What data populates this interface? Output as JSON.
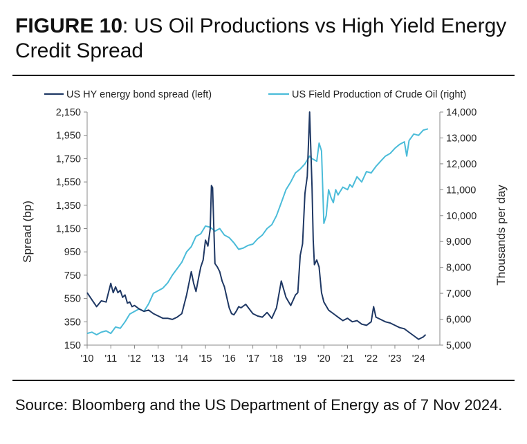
{
  "header": {
    "figure_label": "FIGURE 10",
    "title_text": ": US Oil Productions vs High Yield Energy Credit Spread"
  },
  "footer": {
    "source": "Source: Bloomberg and the US Department of Energy as of 7 Nov 2024."
  },
  "chart_data": {
    "type": "line",
    "title": "",
    "legend_position": "top",
    "grid": false,
    "x_range": [
      2010.0,
      2024.9
    ],
    "x_ticks": [
      {
        "x": 2010,
        "label": "'10"
      },
      {
        "x": 2011,
        "label": "'11"
      },
      {
        "x": 2012,
        "label": "'12"
      },
      {
        "x": 2013,
        "label": "'13"
      },
      {
        "x": 2014,
        "label": "'14"
      },
      {
        "x": 2015,
        "label": "'15"
      },
      {
        "x": 2016,
        "label": "'16"
      },
      {
        "x": 2017,
        "label": "'17"
      },
      {
        "x": 2018,
        "label": "'18"
      },
      {
        "x": 2019,
        "label": "'19"
      },
      {
        "x": 2020,
        "label": "'20"
      },
      {
        "x": 2021,
        "label": "'21"
      },
      {
        "x": 2022,
        "label": "'22"
      },
      {
        "x": 2023,
        "label": "'23"
      },
      {
        "x": 2024,
        "label": "'24"
      }
    ],
    "y_left": {
      "label": "Spread (bp)",
      "range": [
        150,
        2150
      ],
      "ticks": [
        "2,150",
        "1,950",
        "1,750",
        "1,550",
        "1,350",
        "1,150",
        "950",
        "750",
        "550",
        "350",
        "150"
      ],
      "tick_values": [
        2150,
        1950,
        1750,
        1550,
        1350,
        1150,
        950,
        750,
        550,
        350,
        150
      ]
    },
    "y_right": {
      "label": "Thousands per day",
      "range": [
        5000,
        14000
      ],
      "ticks": [
        "14,000",
        "13,000",
        "12,000",
        "11,000",
        "10,000",
        "9,000",
        "8,000",
        "7,000",
        "6,000",
        "5,000"
      ],
      "tick_values": [
        14000,
        13000,
        12000,
        11000,
        10000,
        9000,
        8000,
        7000,
        6000,
        5000
      ]
    },
    "series": [
      {
        "name": "US HY energy bond spread (left)",
        "axis": "left",
        "color": "#1f3864",
        "x": [
          2010.0,
          2010.2,
          2010.4,
          2010.6,
          2010.8,
          2011.0,
          2011.1,
          2011.2,
          2011.3,
          2011.4,
          2011.5,
          2011.6,
          2011.7,
          2011.8,
          2011.9,
          2012.0,
          2012.2,
          2012.4,
          2012.6,
          2012.8,
          2013.0,
          2013.2,
          2013.4,
          2013.6,
          2013.8,
          2014.0,
          2014.2,
          2014.4,
          2014.5,
          2014.6,
          2014.7,
          2014.8,
          2014.9,
          2015.0,
          2015.1,
          2015.2,
          2015.25,
          2015.3,
          2015.4,
          2015.5,
          2015.6,
          2015.7,
          2015.8,
          2015.9,
          2016.0,
          2016.1,
          2016.2,
          2016.3,
          2016.4,
          2016.5,
          2016.7,
          2017.0,
          2017.2,
          2017.4,
          2017.6,
          2017.8,
          2018.0,
          2018.2,
          2018.4,
          2018.6,
          2018.8,
          2018.9,
          2019.0,
          2019.1,
          2019.2,
          2019.3,
          2019.4,
          2019.5,
          2019.55,
          2019.6,
          2019.7,
          2019.8,
          2019.9,
          2020.0,
          2020.2,
          2020.4,
          2020.6,
          2020.8,
          2021.0,
          2021.2,
          2021.4,
          2021.6,
          2021.8,
          2022.0,
          2022.1,
          2022.2,
          2022.4,
          2022.6,
          2022.8,
          2023.0,
          2023.2,
          2023.4,
          2023.6,
          2023.8,
          2024.0,
          2024.1,
          2024.2,
          2024.3
        ],
        "values": [
          600,
          540,
          480,
          530,
          520,
          680,
          600,
          650,
          600,
          620,
          560,
          580,
          510,
          520,
          480,
          490,
          460,
          440,
          450,
          420,
          400,
          380,
          380,
          370,
          390,
          420,
          580,
          780,
          680,
          610,
          720,
          820,
          880,
          1050,
          1000,
          1150,
          1520,
          1500,
          850,
          820,
          780,
          700,
          650,
          560,
          470,
          420,
          410,
          440,
          480,
          470,
          500,
          420,
          400,
          390,
          430,
          380,
          470,
          700,
          560,
          490,
          580,
          600,
          920,
          1020,
          1450,
          1600,
          2150,
          1500,
          1050,
          840,
          880,
          820,
          600,
          520,
          450,
          420,
          390,
          360,
          380,
          350,
          360,
          330,
          320,
          350,
          480,
          390,
          370,
          350,
          340,
          320,
          300,
          290,
          260,
          230,
          200,
          210,
          220,
          240
        ]
      },
      {
        "name": "US Field Production of Crude Oil (right)",
        "axis": "right",
        "color": "#4bbcd9",
        "x": [
          2010.0,
          2010.2,
          2010.4,
          2010.6,
          2010.8,
          2011.0,
          2011.2,
          2011.4,
          2011.6,
          2011.8,
          2012.0,
          2012.2,
          2012.4,
          2012.6,
          2012.8,
          2013.0,
          2013.2,
          2013.4,
          2013.6,
          2013.8,
          2014.0,
          2014.2,
          2014.4,
          2014.6,
          2014.8,
          2015.0,
          2015.2,
          2015.4,
          2015.6,
          2015.8,
          2016.0,
          2016.2,
          2016.4,
          2016.6,
          2016.8,
          2017.0,
          2017.2,
          2017.4,
          2017.6,
          2017.8,
          2018.0,
          2018.2,
          2018.4,
          2018.6,
          2018.8,
          2019.0,
          2019.2,
          2019.4,
          2019.5,
          2019.7,
          2019.8,
          2019.9,
          2020.0,
          2020.1,
          2020.2,
          2020.3,
          2020.4,
          2020.5,
          2020.6,
          2020.8,
          2021.0,
          2021.1,
          2021.2,
          2021.4,
          2021.6,
          2021.8,
          2022.0,
          2022.2,
          2022.4,
          2022.6,
          2022.8,
          2023.0,
          2023.2,
          2023.4,
          2023.5,
          2023.6,
          2023.8,
          2024.0,
          2024.2,
          2024.4
        ],
        "values": [
          5450,
          5500,
          5400,
          5500,
          5550,
          5450,
          5700,
          5650,
          5900,
          6200,
          6300,
          6400,
          6300,
          6600,
          7000,
          7100,
          7200,
          7400,
          7700,
          7950,
          8200,
          8600,
          8800,
          9200,
          9300,
          9600,
          9550,
          9400,
          9500,
          9250,
          9150,
          8950,
          8700,
          8750,
          8850,
          8900,
          9100,
          9250,
          9500,
          9650,
          10000,
          10500,
          11000,
          11300,
          11650,
          11800,
          12000,
          12300,
          12200,
          12100,
          12800,
          12500,
          9700,
          10000,
          11000,
          10700,
          10500,
          11000,
          10800,
          11100,
          11000,
          11200,
          11100,
          11500,
          11300,
          11700,
          11650,
          11900,
          12100,
          12300,
          12400,
          12600,
          12750,
          12850,
          12300,
          12900,
          13150,
          13100,
          13300,
          13350
        ]
      }
    ]
  }
}
